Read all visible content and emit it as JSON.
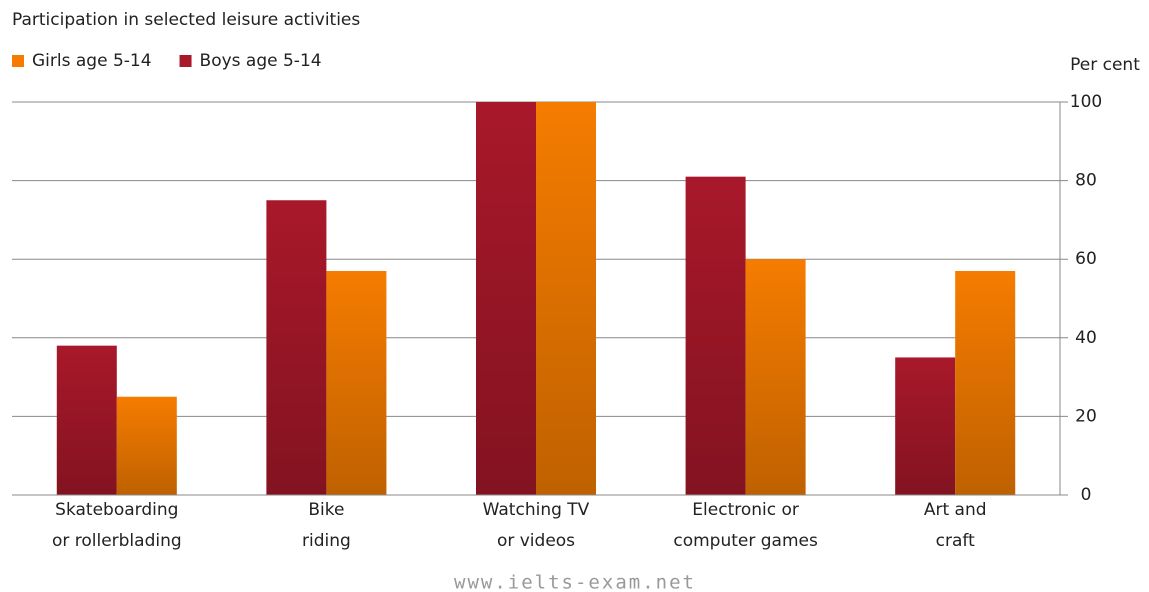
{
  "chart_data": {
    "type": "bar",
    "title": "Participation in selected leisure activities",
    "y_label": "Per cent",
    "watermark": "www.ielts-exam.net",
    "categories": [
      [
        "Skateboarding",
        "or rollerblading"
      ],
      [
        "Bike",
        "riding"
      ],
      [
        "Watching TV",
        "or videos"
      ],
      [
        "Electronic or",
        "computer games"
      ],
      [
        "Art and",
        "craft"
      ]
    ],
    "series": [
      {
        "name": "Girls age  5-14",
        "color": "#f57c00",
        "values": [
          25,
          57,
          100,
          60,
          57
        ]
      },
      {
        "name": "Boys age 5-14",
        "color": "#a8182a",
        "values": [
          38,
          75,
          100,
          81,
          35
        ]
      }
    ],
    "ylim": [
      0,
      100
    ],
    "yticks": [
      0,
      20,
      40,
      60,
      80,
      100
    ],
    "grid": true,
    "legend": "top-left",
    "y_axis_side": "right"
  }
}
